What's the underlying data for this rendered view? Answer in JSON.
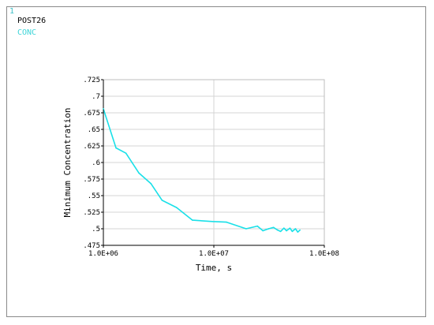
{
  "window_number": "1",
  "program": "POST26",
  "variable": "CONC",
  "colors": {
    "curve": "#19e0e8",
    "grid": "#d4d4d4",
    "axis": "#000000",
    "frame": "#8a8a8a"
  },
  "chart_data": {
    "type": "line",
    "title": "",
    "xlabel": "Time, s",
    "ylabel": "Minimum Concentration",
    "x_scale": "log",
    "xlim": [
      1000000,
      100000000
    ],
    "ylim": [
      0.475,
      0.725
    ],
    "grid": true,
    "x_ticks": [
      {
        "value": 1000000,
        "label": "1.0E+06"
      },
      {
        "value": 10000000,
        "label": "1.0E+07"
      },
      {
        "value": 100000000,
        "label": "1.0E+08"
      }
    ],
    "y_ticks": [
      {
        "value": 0.475,
        "label": ".475"
      },
      {
        "value": 0.5,
        "label": ".5"
      },
      {
        "value": 0.525,
        "label": ".525"
      },
      {
        "value": 0.55,
        "label": ".55"
      },
      {
        "value": 0.575,
        "label": ".575"
      },
      {
        "value": 0.6,
        "label": ".6"
      },
      {
        "value": 0.625,
        "label": ".625"
      },
      {
        "value": 0.65,
        "label": ".65"
      },
      {
        "value": 0.675,
        "label": ".675"
      },
      {
        "value": 0.7,
        "label": ".7"
      },
      {
        "value": 0.725,
        "label": ".725"
      }
    ],
    "series": [
      {
        "name": "CONC",
        "x": [
          1000000,
          1300000,
          1600000,
          2100000,
          2700000,
          3400000,
          4600000,
          6400000,
          9700000,
          13000000,
          19600000,
          24800000,
          27800000,
          31300000,
          34700000,
          37800000,
          40200000,
          43100000,
          45500000,
          48800000,
          51300000,
          54800000,
          57500000,
          60200000
        ],
        "y": [
          0.681,
          0.622,
          0.614,
          0.584,
          0.568,
          0.543,
          0.532,
          0.513,
          0.511,
          0.51,
          0.5,
          0.504,
          0.497,
          0.5,
          0.502,
          0.498,
          0.496,
          0.501,
          0.497,
          0.501,
          0.496,
          0.5,
          0.495,
          0.498
        ]
      }
    ]
  }
}
